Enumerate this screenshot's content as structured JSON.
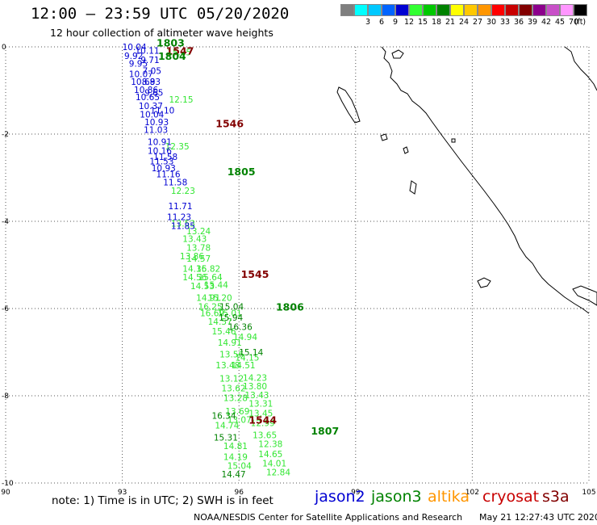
{
  "title": "12:00 – 23:59 UTC 05/20/2020",
  "subtitle": "12 hour collection of altimeter wave heights",
  "color_scale": {
    "unit": "(ft)",
    "bins": [
      {
        "label": "",
        "color": "#7f7f7f"
      },
      {
        "label": "3",
        "color": "#00ffff"
      },
      {
        "label": "6",
        "color": "#00c8ff"
      },
      {
        "label": "9",
        "color": "#0064ff"
      },
      {
        "label": "12",
        "color": "#0000d2"
      },
      {
        "label": "15",
        "color": "#32ff32"
      },
      {
        "label": "18",
        "color": "#00c800"
      },
      {
        "label": "21",
        "color": "#008200"
      },
      {
        "label": "24",
        "color": "#ffff00"
      },
      {
        "label": "27",
        "color": "#ffc800"
      },
      {
        "label": "30",
        "color": "#ff9600"
      },
      {
        "label": "33",
        "color": "#ff0000"
      },
      {
        "label": "36",
        "color": "#c80000"
      },
      {
        "label": "39",
        "color": "#820000"
      },
      {
        "label": "42",
        "color": "#8c008c"
      },
      {
        "label": "45",
        "color": "#c850c8"
      },
      {
        "label": "70",
        "color": "#ff96ff"
      },
      {
        "label": "",
        "color": "#000000"
      }
    ]
  },
  "axes": {
    "lon_ticks": [
      "90",
      "93",
      "96",
      "99",
      "102",
      "105"
    ],
    "lat_ticks": [
      "0",
      "-2",
      "-4",
      "-6",
      "-8",
      "-10"
    ],
    "lon_range": [
      90,
      105
    ],
    "lat_range": [
      -10,
      0
    ],
    "grid": "dotted"
  },
  "pass_labels": [
    {
      "text": "1803",
      "lon": 93.88,
      "lat": 0.1,
      "color": "#008200"
    },
    {
      "text": "1547",
      "lon": 94.12,
      "lat": -0.08,
      "color": "#820000"
    },
    {
      "text": "1804",
      "lon": 93.92,
      "lat": -0.2,
      "color": "#008200"
    },
    {
      "text": "1546",
      "lon": 95.4,
      "lat": -1.75,
      "color": "#820000"
    },
    {
      "text": "1805",
      "lon": 95.7,
      "lat": -2.85,
      "color": "#008200"
    },
    {
      "text": "1545",
      "lon": 96.05,
      "lat": -5.2,
      "color": "#820000"
    },
    {
      "text": "1806",
      "lon": 96.95,
      "lat": -5.95,
      "color": "#008200"
    },
    {
      "text": "1544",
      "lon": 96.25,
      "lat": -8.55,
      "color": "#820000"
    },
    {
      "text": "1807",
      "lon": 97.85,
      "lat": -8.8,
      "color": "#008200"
    }
  ],
  "observations": {
    "jason2": [
      {
        "text": "10.04",
        "lon": 93.0,
        "lat": 0.0
      },
      {
        "text": "10.11",
        "lon": 93.33,
        "lat": -0.08
      },
      {
        "text": "9.92",
        "lon": 93.05,
        "lat": -0.2
      },
      {
        "text": "9.71",
        "lon": 93.47,
        "lat": -0.3
      },
      {
        "text": "9.95",
        "lon": 93.17,
        "lat": -0.38
      },
      {
        "text": "7.05",
        "lon": 93.52,
        "lat": -0.55
      },
      {
        "text": "10.07",
        "lon": 93.17,
        "lat": -0.62
      },
      {
        "text": "10.68",
        "lon": 93.22,
        "lat": -0.8
      },
      {
        "text": "8.93",
        "lon": 93.5,
        "lat": -0.8
      },
      {
        "text": "10.86",
        "lon": 93.3,
        "lat": -0.98
      },
      {
        "text": "9.65",
        "lon": 93.57,
        "lat": -1.05
      },
      {
        "text": "10.65",
        "lon": 93.34,
        "lat": -1.15
      },
      {
        "text": "10.37",
        "lon": 93.42,
        "lat": -1.35
      },
      {
        "text": "11.10",
        "lon": 93.72,
        "lat": -1.45
      },
      {
        "text": "10.04",
        "lon": 93.45,
        "lat": -1.55
      },
      {
        "text": "10.93",
        "lon": 93.57,
        "lat": -1.72
      },
      {
        "text": "11.03",
        "lon": 93.55,
        "lat": -1.9
      },
      {
        "text": "10.91",
        "lon": 93.65,
        "lat": -2.18
      },
      {
        "text": "10.16",
        "lon": 93.65,
        "lat": -2.38
      },
      {
        "text": "11.58",
        "lon": 93.8,
        "lat": -2.52
      },
      {
        "text": "11.53",
        "lon": 93.7,
        "lat": -2.62
      },
      {
        "text": "10.93",
        "lon": 93.75,
        "lat": -2.78
      },
      {
        "text": "11.16",
        "lon": 93.87,
        "lat": -2.92
      },
      {
        "text": "11.58",
        "lon": 94.05,
        "lat": -3.1
      },
      {
        "text": "11.71",
        "lon": 94.18,
        "lat": -3.65
      },
      {
        "text": "11.23",
        "lon": 94.15,
        "lat": -3.9
      },
      {
        "text": "11.85",
        "lon": 94.25,
        "lat": -4.1
      }
    ],
    "jason3": [
      {
        "text": "15.04",
        "lon": 95.5,
        "lat": -5.95
      },
      {
        "text": "15.94",
        "lon": 95.48,
        "lat": -6.2
      },
      {
        "text": "16.36",
        "lon": 95.72,
        "lat": -6.42
      },
      {
        "text": "15.14",
        "lon": 96.0,
        "lat": -7.0
      },
      {
        "text": "16.34",
        "lon": 95.3,
        "lat": -8.45
      },
      {
        "text": "15.31",
        "lon": 95.35,
        "lat": -8.95
      },
      {
        "text": "14.47",
        "lon": 95.55,
        "lat": -9.8
      }
    ],
    "saral_altika": [],
    "cryosat": [],
    "sentinel3a": [
      {
        "text": "15.05",
        "lon": 94.15,
        "lat": -0.12
      },
      {
        "text": "12.15",
        "lon": 94.2,
        "lat": -1.2
      },
      {
        "text": "12.35",
        "lon": 94.1,
        "lat": -2.28
      },
      {
        "text": "12.23",
        "lon": 94.25,
        "lat": -3.3
      },
      {
        "text": "13.53",
        "lon": 94.25,
        "lat": -4.05
      },
      {
        "text": "13.24",
        "lon": 94.65,
        "lat": -4.22
      },
      {
        "text": "13.43",
        "lon": 94.55,
        "lat": -4.4
      },
      {
        "text": "13.78",
        "lon": 94.65,
        "lat": -4.6
      },
      {
        "text": "13.86",
        "lon": 94.48,
        "lat": -4.8
      },
      {
        "text": "14.57",
        "lon": 94.65,
        "lat": -4.85
      },
      {
        "text": "14.36",
        "lon": 94.55,
        "lat": -5.08
      },
      {
        "text": "15.82",
        "lon": 94.9,
        "lat": -5.08
      },
      {
        "text": "14.56",
        "lon": 94.55,
        "lat": -5.28
      },
      {
        "text": "15.64",
        "lon": 94.95,
        "lat": -5.28
      },
      {
        "text": "14.53",
        "lon": 94.75,
        "lat": -5.48
      },
      {
        "text": "15.44",
        "lon": 95.1,
        "lat": -5.45
      },
      {
        "text": "14.91",
        "lon": 94.9,
        "lat": -5.75
      },
      {
        "text": "15.20",
        "lon": 95.2,
        "lat": -5.75
      },
      {
        "text": "16.25",
        "lon": 94.95,
        "lat": -5.95
      },
      {
        "text": "16.69",
        "lon": 95.0,
        "lat": -6.1
      },
      {
        "text": "15.01",
        "lon": 95.45,
        "lat": -6.1
      },
      {
        "text": "14.57",
        "lon": 95.2,
        "lat": -6.3
      },
      {
        "text": "15.46",
        "lon": 95.3,
        "lat": -6.52
      },
      {
        "text": "14.94",
        "lon": 95.85,
        "lat": -6.65
      },
      {
        "text": "14.91",
        "lon": 95.45,
        "lat": -6.78
      },
      {
        "text": "13.56",
        "lon": 95.5,
        "lat": -7.05
      },
      {
        "text": "14.15",
        "lon": 95.9,
        "lat": -7.12
      },
      {
        "text": "13.48",
        "lon": 95.4,
        "lat": -7.3
      },
      {
        "text": "14.51",
        "lon": 95.8,
        "lat": -7.3
      },
      {
        "text": "13.12",
        "lon": 95.5,
        "lat": -7.6
      },
      {
        "text": "14.23",
        "lon": 96.1,
        "lat": -7.58
      },
      {
        "text": "13.62",
        "lon": 95.55,
        "lat": -7.82
      },
      {
        "text": "13.80",
        "lon": 96.1,
        "lat": -7.78
      },
      {
        "text": "13.43",
        "lon": 96.15,
        "lat": -7.98
      },
      {
        "text": "13.28",
        "lon": 95.6,
        "lat": -8.05
      },
      {
        "text": "13.31",
        "lon": 96.25,
        "lat": -8.18
      },
      {
        "text": "13.45",
        "lon": 96.25,
        "lat": -8.4
      },
      {
        "text": "13.69",
        "lon": 95.65,
        "lat": -8.35
      },
      {
        "text": "13.07",
        "lon": 95.7,
        "lat": -8.55
      },
      {
        "text": "12.99",
        "lon": 96.3,
        "lat": -8.62
      },
      {
        "text": "14.74",
        "lon": 95.38,
        "lat": -8.68
      },
      {
        "text": "13.65",
        "lon": 96.35,
        "lat": -8.9
      },
      {
        "text": "12.38",
        "lon": 96.5,
        "lat": -9.1
      },
      {
        "text": "14.81",
        "lon": 95.6,
        "lat": -9.15
      },
      {
        "text": "14.65",
        "lon": 96.5,
        "lat": -9.33
      },
      {
        "text": "14.19",
        "lon": 95.6,
        "lat": -9.4
      },
      {
        "text": "14.01",
        "lon": 96.6,
        "lat": -9.55
      },
      {
        "text": "15.04",
        "lon": 95.7,
        "lat": -9.6
      },
      {
        "text": "12.84",
        "lon": 96.7,
        "lat": -9.75
      }
    ]
  },
  "colors": {
    "jason2": "#0000d2",
    "jason3": "#008200",
    "saral_altika": "#ff9600",
    "cryosat": "#c80000",
    "sentinel3a": "#32e632",
    "pass_label_s3a": "#820000"
  },
  "note": "note:  1) Time is in UTC;  2) SWH is in feet",
  "legend": {
    "jason2": "jason2",
    "jason3": "jason3",
    "altika": "altika",
    "cryosat": "cryosat",
    "s3a": "s3a"
  },
  "footer": {
    "credit": "NOAA/NESDIS Center for Satellite Applications and Research",
    "timestamp": "May 21 12:27:43 UTC 2020"
  }
}
